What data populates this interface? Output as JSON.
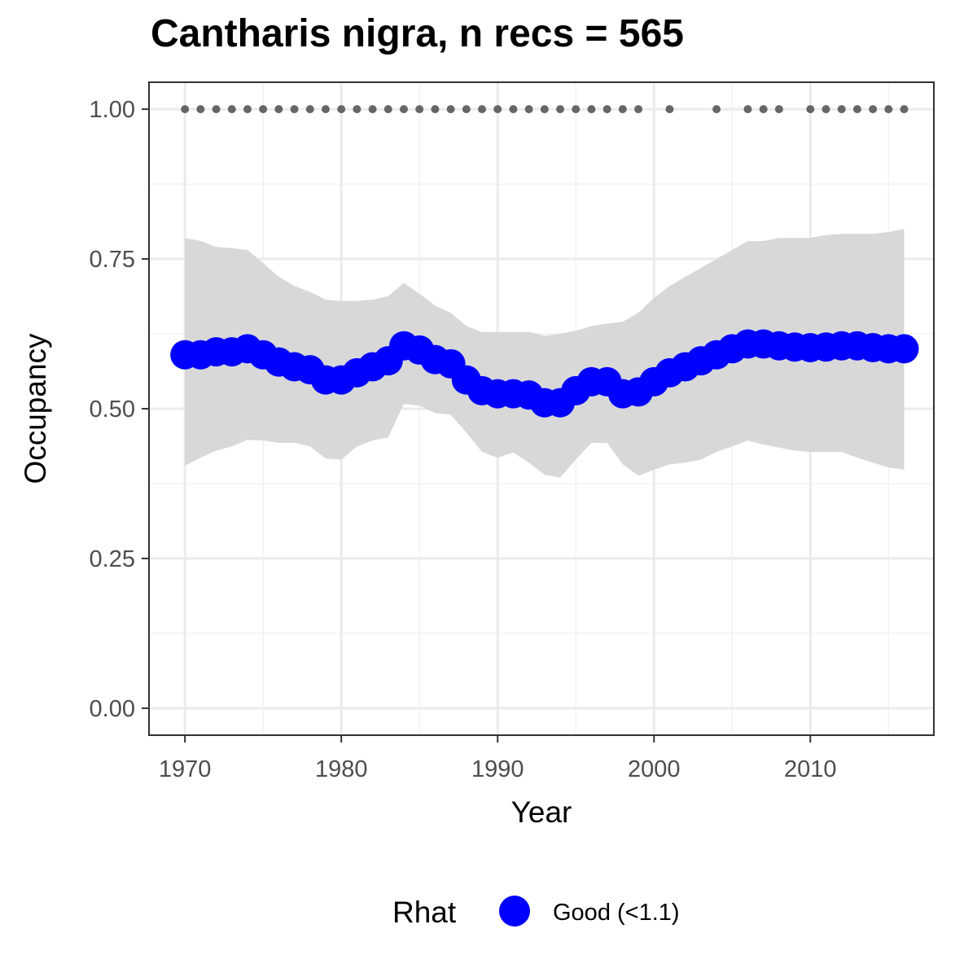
{
  "chart_data": {
    "type": "line",
    "title": "Cantharis nigra, n recs = 565",
    "xlabel": "Year",
    "ylabel": "Occupancy",
    "xlim": [
      1967.7,
      2017.9
    ],
    "ylim": [
      -0.045,
      1.045
    ],
    "x_ticks": [
      "1970",
      "1980",
      "1990",
      "2000",
      "2010"
    ],
    "y_ticks": [
      "0.00",
      "0.25",
      "0.50",
      "0.75",
      "1.00"
    ],
    "grid": true,
    "legend": {
      "title": "Rhat",
      "position": "bottom",
      "entries": [
        "Good (<1.1)"
      ]
    },
    "colors": {
      "series": "#0000ff",
      "ribbon": "#d6d6d6",
      "records": "#666666"
    },
    "years": [
      1970,
      1971,
      1972,
      1973,
      1974,
      1975,
      1976,
      1977,
      1978,
      1979,
      1980,
      1981,
      1982,
      1983,
      1984,
      1985,
      1986,
      1987,
      1988,
      1989,
      1990,
      1991,
      1992,
      1993,
      1994,
      1995,
      1996,
      1997,
      1998,
      1999,
      2000,
      2001,
      2002,
      2003,
      2004,
      2005,
      2006,
      2007,
      2008,
      2009,
      2010,
      2011,
      2012,
      2013,
      2014,
      2015,
      2016
    ],
    "series": [
      {
        "name": "Good (<1.1)",
        "values": [
          0.59,
          0.59,
          0.595,
          0.595,
          0.6,
          0.59,
          0.578,
          0.57,
          0.565,
          0.548,
          0.548,
          0.56,
          0.57,
          0.58,
          0.605,
          0.598,
          0.582,
          0.575,
          0.548,
          0.53,
          0.525,
          0.525,
          0.523,
          0.51,
          0.51,
          0.53,
          0.545,
          0.545,
          0.525,
          0.528,
          0.545,
          0.56,
          0.57,
          0.58,
          0.59,
          0.6,
          0.608,
          0.608,
          0.605,
          0.603,
          0.602,
          0.603,
          0.605,
          0.605,
          0.602,
          0.6,
          0.6
        ],
        "lower": [
          0.405,
          0.418,
          0.43,
          0.437,
          0.448,
          0.447,
          0.443,
          0.443,
          0.437,
          0.417,
          0.415,
          0.437,
          0.447,
          0.452,
          0.508,
          0.505,
          0.493,
          0.49,
          0.46,
          0.428,
          0.418,
          0.427,
          0.41,
          0.39,
          0.385,
          0.415,
          0.443,
          0.443,
          0.407,
          0.388,
          0.398,
          0.407,
          0.41,
          0.415,
          0.428,
          0.437,
          0.447,
          0.44,
          0.435,
          0.43,
          0.428,
          0.428,
          0.428,
          0.418,
          0.41,
          0.402,
          0.398
        ],
        "upper": [
          0.785,
          0.78,
          0.77,
          0.768,
          0.765,
          0.743,
          0.72,
          0.705,
          0.695,
          0.682,
          0.68,
          0.68,
          0.682,
          0.688,
          0.71,
          0.692,
          0.672,
          0.66,
          0.638,
          0.628,
          0.628,
          0.628,
          0.628,
          0.622,
          0.625,
          0.63,
          0.638,
          0.642,
          0.645,
          0.66,
          0.685,
          0.705,
          0.72,
          0.735,
          0.75,
          0.765,
          0.78,
          0.78,
          0.785,
          0.785,
          0.785,
          0.79,
          0.792,
          0.792,
          0.792,
          0.795,
          0.8
        ]
      }
    ],
    "record_years": [
      1970,
      1971,
      1972,
      1973,
      1974,
      1975,
      1976,
      1977,
      1978,
      1979,
      1980,
      1981,
      1982,
      1983,
      1984,
      1985,
      1986,
      1987,
      1988,
      1989,
      1990,
      1991,
      1992,
      1993,
      1994,
      1995,
      1996,
      1997,
      1998,
      1999,
      2001,
      2004,
      2006,
      2007,
      2008,
      2010,
      2011,
      2012,
      2013,
      2014,
      2015,
      2016
    ],
    "record_value": 1.0
  }
}
